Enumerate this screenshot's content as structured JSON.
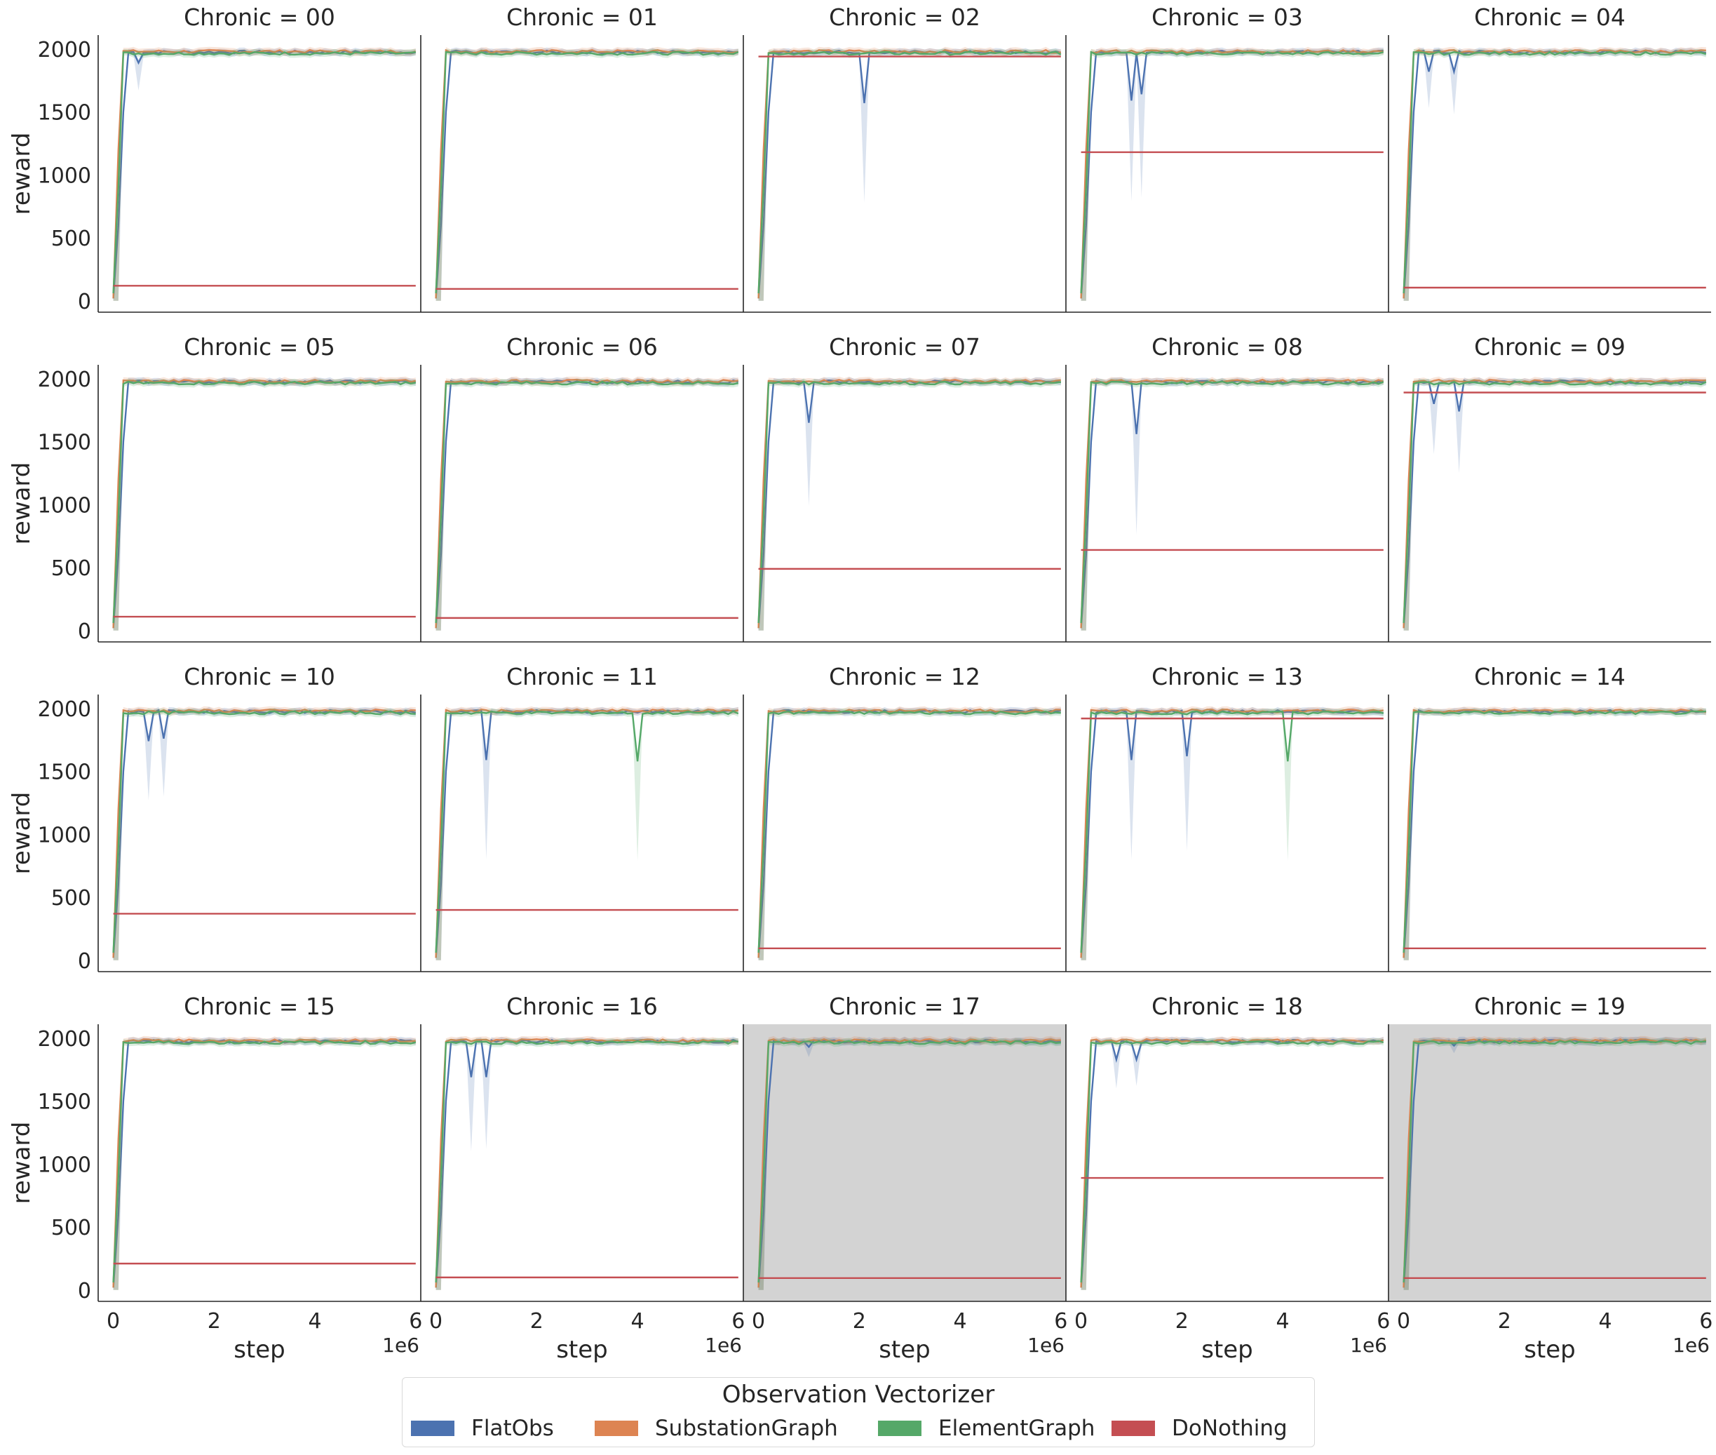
{
  "chart_data": {
    "type": "line",
    "layout": "facet-grid-4x5",
    "facet_prefix": "Chronic = ",
    "xlabel": "step",
    "ylabel": "reward",
    "x_offset_label": "1e6",
    "xlim": [
      -0.3,
      6.1
    ],
    "ylim": [
      -90,
      2110
    ],
    "x_ticks": [
      0,
      2,
      4,
      6
    ],
    "y_ticks": [
      0,
      500,
      1000,
      1500,
      2000
    ],
    "grid": false,
    "highlight_color": "#d3d3d3",
    "legend": {
      "title": "Observation Vectorizer",
      "placement": "bottom-center",
      "entries": [
        {
          "name": "FlatObs",
          "color": "#4c72b0"
        },
        {
          "name": "SubstationGraph",
          "color": "#dd8452"
        },
        {
          "name": "ElementGraph",
          "color": "#55a868"
        },
        {
          "name": "DoNothing",
          "color": "#c44e52"
        }
      ]
    },
    "facets": [
      {
        "chronic": "00",
        "donothing": 120,
        "highlight": false,
        "dips": [
          {
            "series": "FlatObs",
            "x": 0.5,
            "y": 1890,
            "band": 1670
          }
        ]
      },
      {
        "chronic": "01",
        "donothing": 95,
        "highlight": false,
        "dips": []
      },
      {
        "chronic": "02",
        "donothing": 1940,
        "highlight": false,
        "dips": [
          {
            "series": "FlatObs",
            "x": 2.1,
            "y": 1570,
            "band": 780
          }
        ]
      },
      {
        "chronic": "03",
        "donothing": 1180,
        "highlight": false,
        "dips": [
          {
            "series": "FlatObs",
            "x": 1.0,
            "y": 1590,
            "band": 790
          },
          {
            "series": "FlatObs",
            "x": 1.2,
            "y": 1640,
            "band": 820
          }
        ]
      },
      {
        "chronic": "04",
        "donothing": 105,
        "highlight": false,
        "dips": [
          {
            "series": "FlatObs",
            "x": 0.5,
            "y": 1820,
            "band": 1530
          },
          {
            "series": "FlatObs",
            "x": 1.0,
            "y": 1820,
            "band": 1480
          }
        ]
      },
      {
        "chronic": "05",
        "donothing": 110,
        "highlight": false,
        "dips": []
      },
      {
        "chronic": "06",
        "donothing": 100,
        "highlight": false,
        "dips": []
      },
      {
        "chronic": "07",
        "donothing": 490,
        "highlight": false,
        "dips": [
          {
            "series": "FlatObs",
            "x": 1.0,
            "y": 1650,
            "band": 990
          }
        ]
      },
      {
        "chronic": "08",
        "donothing": 640,
        "highlight": false,
        "dips": [
          {
            "series": "FlatObs",
            "x": 1.1,
            "y": 1560,
            "band": 760
          }
        ]
      },
      {
        "chronic": "09",
        "donothing": 1890,
        "highlight": false,
        "dips": [
          {
            "series": "FlatObs",
            "x": 0.6,
            "y": 1800,
            "band": 1400
          },
          {
            "series": "FlatObs",
            "x": 1.1,
            "y": 1740,
            "band": 1250
          }
        ]
      },
      {
        "chronic": "10",
        "donothing": 370,
        "highlight": false,
        "dips": [
          {
            "series": "FlatObs",
            "x": 0.7,
            "y": 1740,
            "band": 1270
          },
          {
            "series": "FlatObs",
            "x": 1.0,
            "y": 1760,
            "band": 1300
          }
        ]
      },
      {
        "chronic": "11",
        "donothing": 400,
        "highlight": false,
        "dips": [
          {
            "series": "FlatObs",
            "x": 1.0,
            "y": 1590,
            "band": 800
          },
          {
            "series": "ElementGraph",
            "x": 4.0,
            "y": 1580,
            "band": 790
          }
        ]
      },
      {
        "chronic": "12",
        "donothing": 95,
        "highlight": false,
        "dips": []
      },
      {
        "chronic": "13",
        "donothing": 1920,
        "highlight": false,
        "dips": [
          {
            "series": "FlatObs",
            "x": 1.0,
            "y": 1590,
            "band": 800
          },
          {
            "series": "FlatObs",
            "x": 2.1,
            "y": 1620,
            "band": 870
          },
          {
            "series": "ElementGraph",
            "x": 4.1,
            "y": 1580,
            "band": 790
          }
        ]
      },
      {
        "chronic": "14",
        "donothing": 95,
        "highlight": false,
        "dips": []
      },
      {
        "chronic": "15",
        "donothing": 210,
        "highlight": false,
        "dips": []
      },
      {
        "chronic": "16",
        "donothing": 100,
        "highlight": false,
        "dips": [
          {
            "series": "FlatObs",
            "x": 0.7,
            "y": 1690,
            "band": 1100
          },
          {
            "series": "FlatObs",
            "x": 1.0,
            "y": 1690,
            "band": 1120
          }
        ]
      },
      {
        "chronic": "17",
        "donothing": 95,
        "highlight": true,
        "dips": [
          {
            "series": "FlatObs",
            "x": 1.0,
            "y": 1930,
            "band": 1850
          }
        ]
      },
      {
        "chronic": "18",
        "donothing": 890,
        "highlight": false,
        "dips": [
          {
            "series": "FlatObs",
            "x": 0.7,
            "y": 1830,
            "band": 1600
          },
          {
            "series": "FlatObs",
            "x": 1.1,
            "y": 1830,
            "band": 1620
          }
        ]
      },
      {
        "chronic": "19",
        "donothing": 95,
        "highlight": true,
        "dips": [
          {
            "series": "FlatObs",
            "x": 1.0,
            "y": 1940,
            "band": 1880
          }
        ]
      }
    ]
  }
}
